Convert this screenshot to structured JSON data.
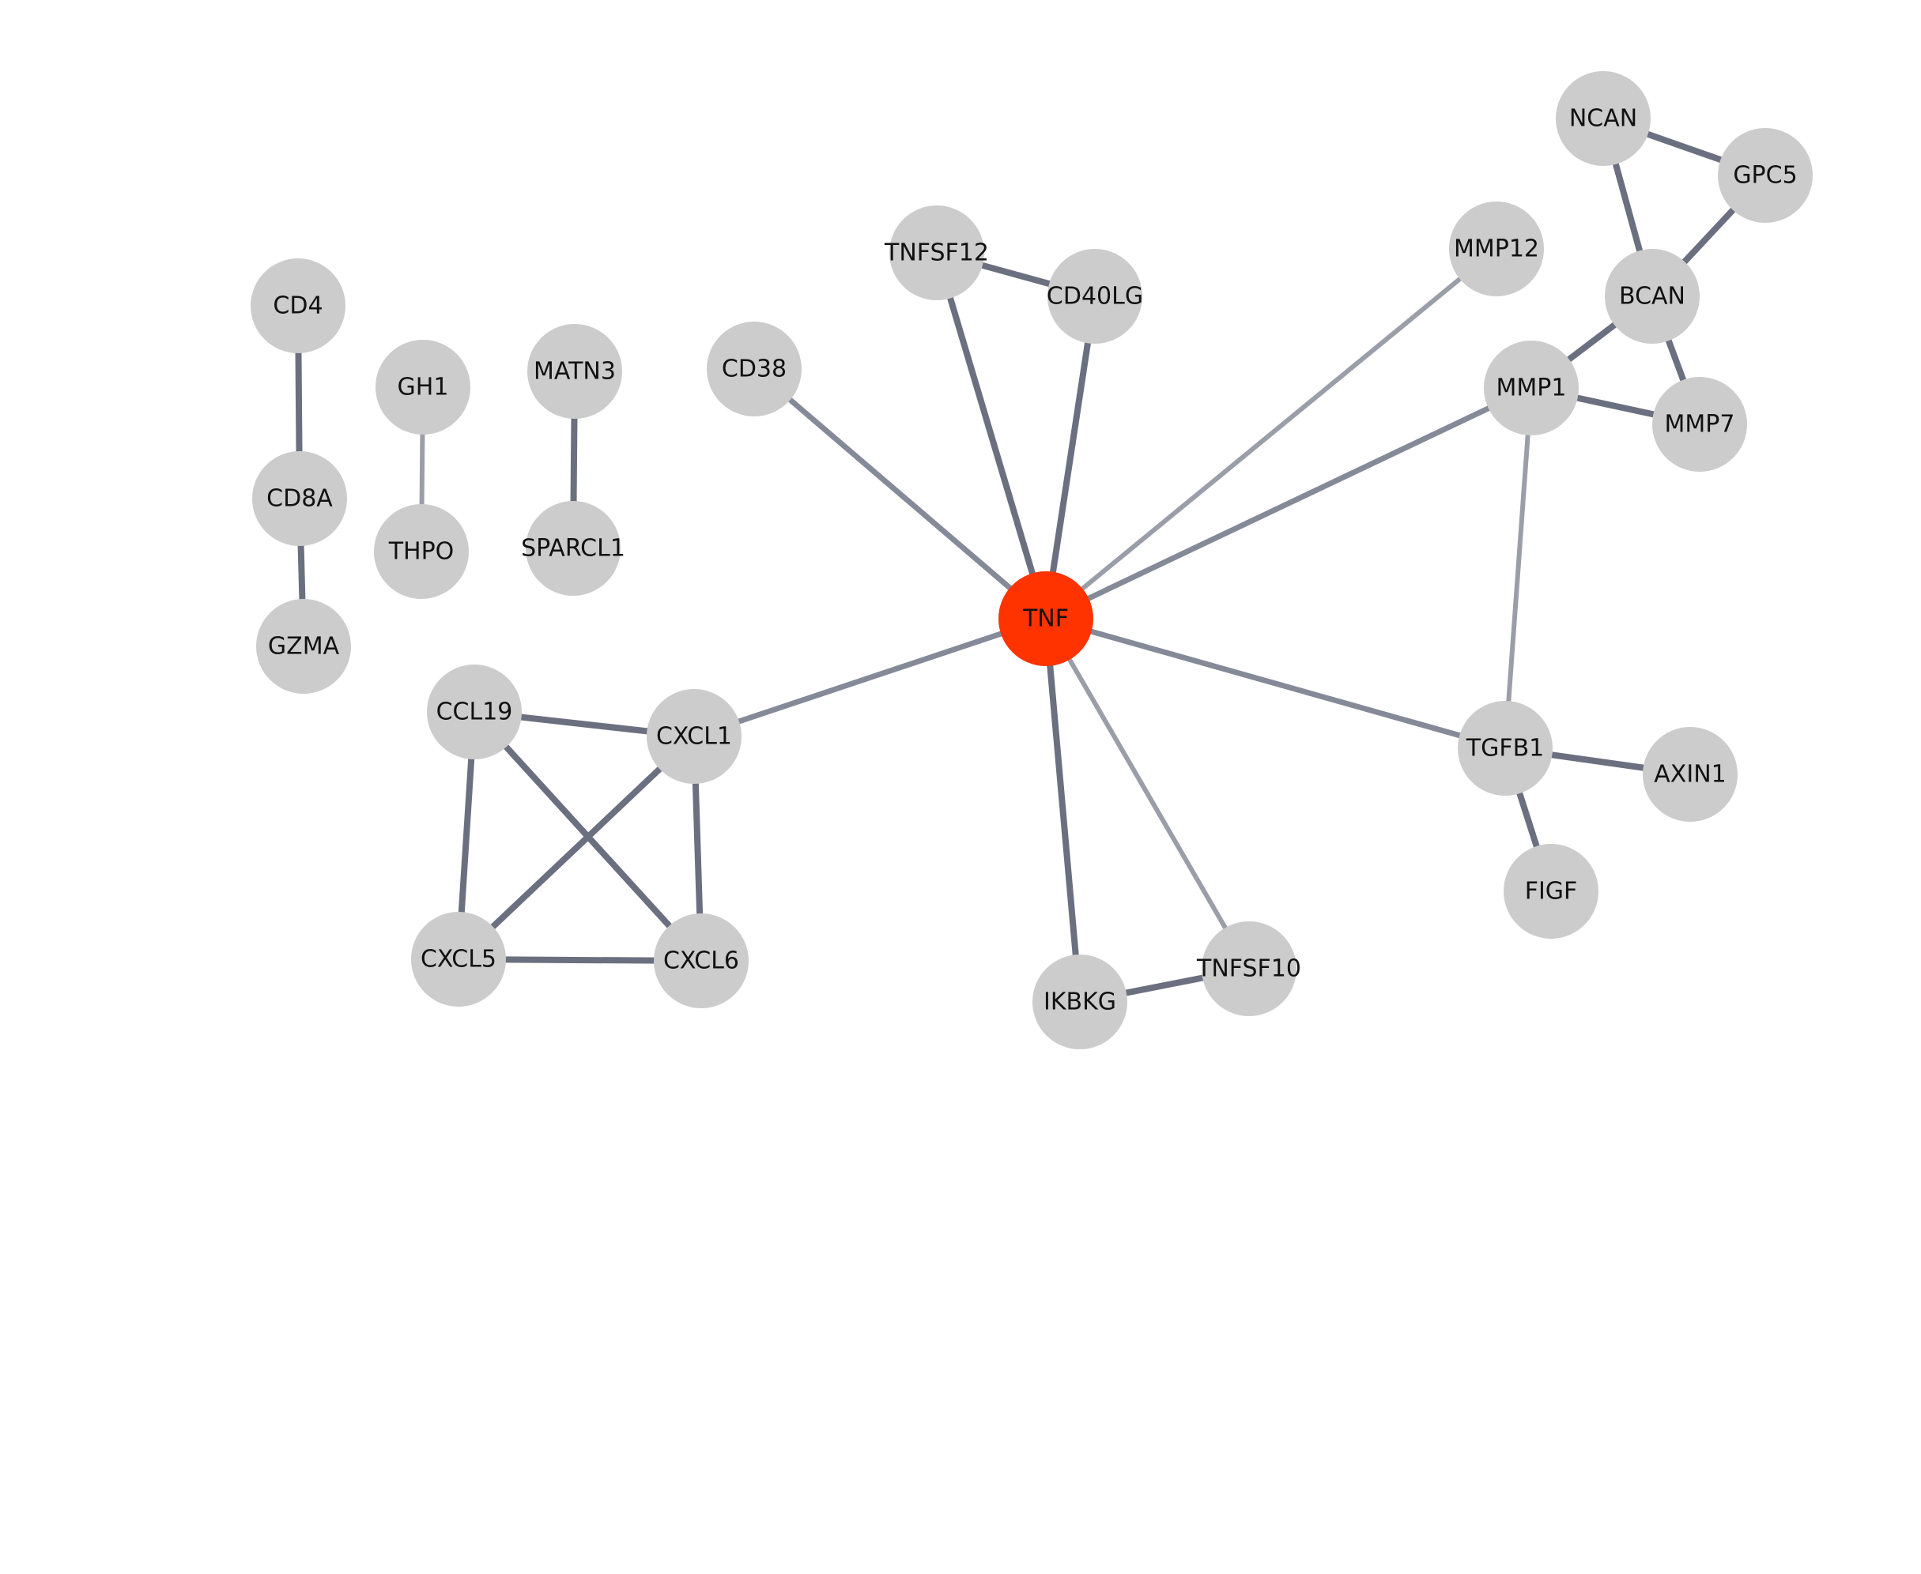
{
  "network": {
    "colors": {
      "node_default": "#cccccc",
      "node_highlight": "#ff3300",
      "edge_strong": "#6b7080",
      "edge_medium": "#858a99",
      "edge_weak": "#9a9ea9",
      "label": "#111111"
    },
    "nodes": [
      {
        "id": "TNF",
        "label": "TNF",
        "highlight": true
      },
      {
        "id": "NCAN",
        "label": "NCAN"
      },
      {
        "id": "GPC5",
        "label": "GPC5"
      },
      {
        "id": "BCAN",
        "label": "BCAN"
      },
      {
        "id": "MMP12",
        "label": "MMP12"
      },
      {
        "id": "TNFSF12",
        "label": "TNFSF12"
      },
      {
        "id": "CD40LG",
        "label": "CD40LG"
      },
      {
        "id": "MMP1",
        "label": "MMP1"
      },
      {
        "id": "MMP7",
        "label": "MMP7"
      },
      {
        "id": "CD4",
        "label": "CD4"
      },
      {
        "id": "GH1",
        "label": "GH1"
      },
      {
        "id": "MATN3",
        "label": "MATN3"
      },
      {
        "id": "CD38",
        "label": "CD38"
      },
      {
        "id": "CD8A",
        "label": "CD8A"
      },
      {
        "id": "THPO",
        "label": "THPO"
      },
      {
        "id": "SPARCL1",
        "label": "SPARCL1"
      },
      {
        "id": "GZMA",
        "label": "GZMA"
      },
      {
        "id": "CCL19",
        "label": "CCL19"
      },
      {
        "id": "CXCL1",
        "label": "CXCL1"
      },
      {
        "id": "TGFB1",
        "label": "TGFB1"
      },
      {
        "id": "AXIN1",
        "label": "AXIN1"
      },
      {
        "id": "FIGF",
        "label": "FIGF"
      },
      {
        "id": "CXCL5",
        "label": "CXCL5"
      },
      {
        "id": "CXCL6",
        "label": "CXCL6"
      },
      {
        "id": "IKBKG",
        "label": "IKBKG"
      },
      {
        "id": "TNFSF10",
        "label": "TNFSF10"
      }
    ],
    "edges": [
      {
        "source": "NCAN",
        "target": "GPC5",
        "strength": "strong"
      },
      {
        "source": "NCAN",
        "target": "BCAN",
        "strength": "strong"
      },
      {
        "source": "GPC5",
        "target": "BCAN",
        "strength": "strong"
      },
      {
        "source": "BCAN",
        "target": "MMP1",
        "strength": "strong"
      },
      {
        "source": "BCAN",
        "target": "MMP7",
        "strength": "strong"
      },
      {
        "source": "MMP1",
        "target": "MMP7",
        "strength": "strong"
      },
      {
        "source": "MMP1",
        "target": "TGFB1",
        "strength": "weak"
      },
      {
        "source": "TNFSF12",
        "target": "CD40LG",
        "strength": "strong"
      },
      {
        "source": "TNFSF12",
        "target": "TNF",
        "strength": "strong"
      },
      {
        "source": "CD40LG",
        "target": "TNF",
        "strength": "strong"
      },
      {
        "source": "MMP12",
        "target": "TNF",
        "strength": "weak"
      },
      {
        "source": "MMP1",
        "target": "TNF",
        "strength": "medium"
      },
      {
        "source": "CD38",
        "target": "TNF",
        "strength": "medium"
      },
      {
        "source": "CXCL1",
        "target": "TNF",
        "strength": "medium"
      },
      {
        "source": "TGFB1",
        "target": "TNF",
        "strength": "medium"
      },
      {
        "source": "IKBKG",
        "target": "TNF",
        "strength": "strong"
      },
      {
        "source": "TNFSF10",
        "target": "TNF",
        "strength": "weak"
      },
      {
        "source": "IKBKG",
        "target": "TNFSF10",
        "strength": "strong"
      },
      {
        "source": "TGFB1",
        "target": "AXIN1",
        "strength": "strong"
      },
      {
        "source": "TGFB1",
        "target": "FIGF",
        "strength": "strong"
      },
      {
        "source": "CD4",
        "target": "CD8A",
        "strength": "strong"
      },
      {
        "source": "CD8A",
        "target": "GZMA",
        "strength": "strong"
      },
      {
        "source": "GH1",
        "target": "THPO",
        "strength": "weak"
      },
      {
        "source": "MATN3",
        "target": "SPARCL1",
        "strength": "strong"
      },
      {
        "source": "CCL19",
        "target": "CXCL1",
        "strength": "strong"
      },
      {
        "source": "CCL19",
        "target": "CXCL5",
        "strength": "strong"
      },
      {
        "source": "CCL19",
        "target": "CXCL6",
        "strength": "strong"
      },
      {
        "source": "CXCL1",
        "target": "CXCL5",
        "strength": "strong"
      },
      {
        "source": "CXCL1",
        "target": "CXCL6",
        "strength": "strong"
      },
      {
        "source": "CXCL5",
        "target": "CXCL6",
        "strength": "strong"
      }
    ]
  }
}
